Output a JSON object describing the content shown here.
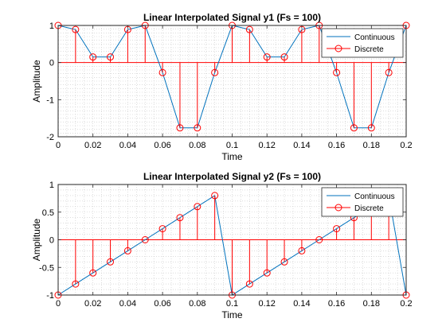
{
  "chart_data": [
    {
      "type": "line",
      "title": "Linear Interpolated Signal y1 (Fs = 100)",
      "xlabel": "Time",
      "ylabel": "Amplitude",
      "xlim": [
        0,
        0.2
      ],
      "ylim": [
        -2,
        1
      ],
      "xticks": [
        0,
        0.02,
        0.04,
        0.06,
        0.08,
        0.1,
        0.12,
        0.14,
        0.16,
        0.18,
        0.2
      ],
      "xtick_labels": [
        "0",
        "0.02",
        "0.04",
        "0.06",
        "0.08",
        "0.1",
        "0.12",
        "0.14",
        "0.16",
        "0.18",
        "0.2"
      ],
      "yticks": [
        -2,
        -1,
        0,
        1
      ],
      "ytick_labels": [
        "-2",
        "-1",
        "0",
        "1"
      ],
      "grid": "minor-dotted",
      "legend_position": "top-right",
      "x": [
        0,
        0.01,
        0.02,
        0.03,
        0.04,
        0.05,
        0.06,
        0.07,
        0.08,
        0.09,
        0.1,
        0.11,
        0.12,
        0.13,
        0.14,
        0.15,
        0.16,
        0.17,
        0.18,
        0.19,
        0.2
      ],
      "series": [
        {
          "name": "Continuous",
          "style": "line",
          "color": "#0072BD",
          "values": [
            1,
            0.89,
            0.15,
            0.15,
            0.89,
            1,
            -0.27,
            -1.76,
            -1.76,
            -0.27,
            1,
            0.89,
            0.15,
            0.15,
            0.89,
            1,
            -0.27,
            -1.76,
            -1.76,
            -0.27,
            1
          ]
        },
        {
          "name": "Discrete",
          "style": "stem",
          "color": "#ff0000",
          "values": [
            1,
            0.89,
            0.15,
            0.15,
            0.89,
            1,
            -0.27,
            -1.76,
            -1.76,
            -0.27,
            1,
            0.89,
            0.15,
            0.15,
            0.89,
            1,
            -0.27,
            -1.76,
            -1.76,
            -0.27,
            1
          ]
        }
      ]
    },
    {
      "type": "line",
      "title": "Linear Interpolated Signal y2 (Fs = 100)",
      "xlabel": "Time",
      "ylabel": "Amplitude",
      "xlim": [
        0,
        0.2
      ],
      "ylim": [
        -1,
        1
      ],
      "xticks": [
        0,
        0.02,
        0.04,
        0.06,
        0.08,
        0.1,
        0.12,
        0.14,
        0.16,
        0.18,
        0.2
      ],
      "xtick_labels": [
        "0",
        "0.02",
        "0.04",
        "0.06",
        "0.08",
        "0.1",
        "0.12",
        "0.14",
        "0.16",
        "0.18",
        "0.2"
      ],
      "yticks": [
        -1,
        -0.5,
        0,
        0.5,
        1
      ],
      "ytick_labels": [
        "-1",
        "-0.5",
        "0",
        "0.5",
        "1"
      ],
      "grid": "minor-dotted",
      "legend_position": "top-right",
      "x": [
        0,
        0.01,
        0.02,
        0.03,
        0.04,
        0.05,
        0.06,
        0.07,
        0.08,
        0.09,
        0.1,
        0.11,
        0.12,
        0.13,
        0.14,
        0.15,
        0.16,
        0.17,
        0.18,
        0.19,
        0.2
      ],
      "series": [
        {
          "name": "Continuous",
          "style": "line",
          "color": "#0072BD",
          "values": [
            -1,
            -0.8,
            -0.6,
            -0.4,
            -0.2,
            0,
            0.2,
            0.4,
            0.6,
            0.8,
            -1,
            -0.8,
            -0.6,
            -0.4,
            -0.2,
            0,
            0.2,
            0.4,
            0.6,
            0.8,
            -1
          ]
        },
        {
          "name": "Discrete",
          "style": "stem",
          "color": "#ff0000",
          "values": [
            -1,
            -0.8,
            -0.6,
            -0.4,
            -0.2,
            0,
            0.2,
            0.4,
            0.6,
            0.8,
            -1,
            -0.8,
            -0.6,
            -0.4,
            -0.2,
            0,
            0.2,
            0.4,
            0.6,
            0.8,
            -1
          ]
        }
      ]
    }
  ]
}
